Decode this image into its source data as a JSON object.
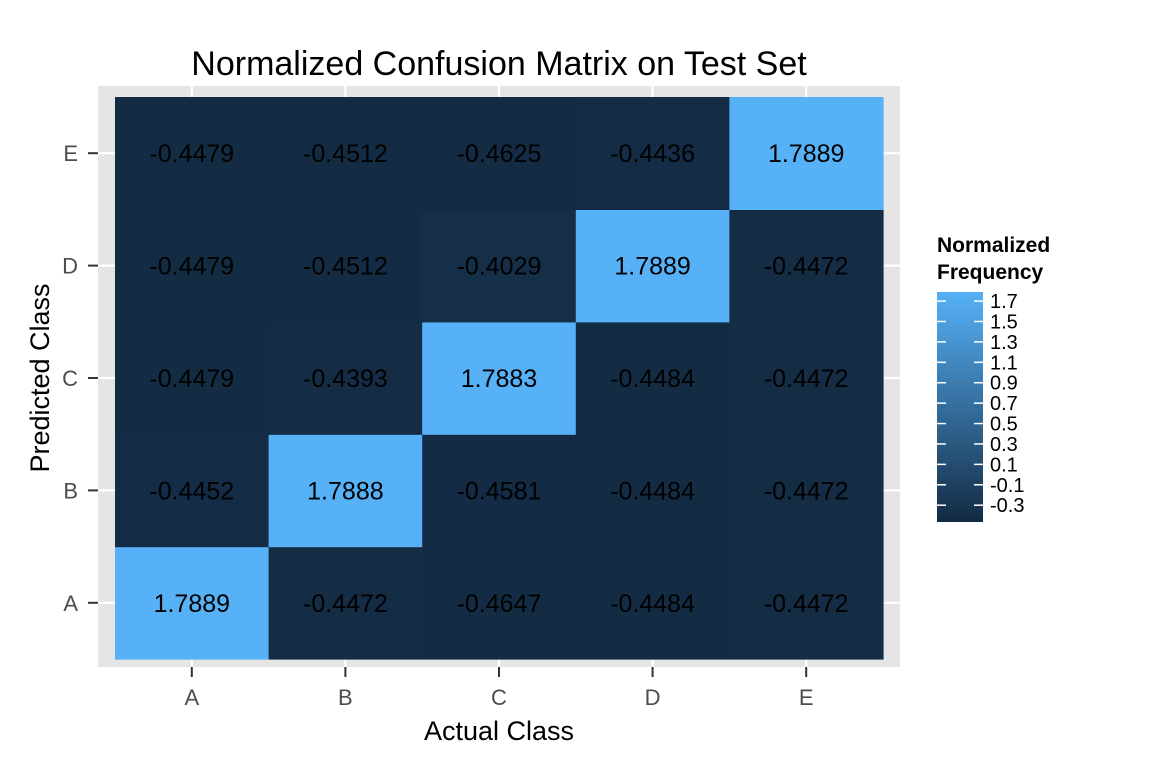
{
  "chart_data": {
    "type": "heatmap",
    "title": "Normalized Confusion Matrix on Test Set",
    "xlabel": "Actual Class",
    "ylabel": "Predicted Class",
    "x_categories": [
      "A",
      "B",
      "C",
      "D",
      "E"
    ],
    "y_categories": [
      "A",
      "B",
      "C",
      "D",
      "E"
    ],
    "cells": [
      {
        "x": "A",
        "y": "A",
        "value": 1.7889,
        "label": "1.7889"
      },
      {
        "x": "B",
        "y": "A",
        "value": -0.4472,
        "label": "-0.4472"
      },
      {
        "x": "C",
        "y": "A",
        "value": -0.4647,
        "label": "-0.4647"
      },
      {
        "x": "D",
        "y": "A",
        "value": -0.4484,
        "label": "-0.4484"
      },
      {
        "x": "E",
        "y": "A",
        "value": -0.4472,
        "label": "-0.4472"
      },
      {
        "x": "A",
        "y": "B",
        "value": -0.4452,
        "label": "-0.4452"
      },
      {
        "x": "B",
        "y": "B",
        "value": 1.7888,
        "label": "1.7888"
      },
      {
        "x": "C",
        "y": "B",
        "value": -0.4581,
        "label": "-0.4581"
      },
      {
        "x": "D",
        "y": "B",
        "value": -0.4484,
        "label": "-0.4484"
      },
      {
        "x": "E",
        "y": "B",
        "value": -0.4472,
        "label": "-0.4472"
      },
      {
        "x": "A",
        "y": "C",
        "value": -0.4479,
        "label": "-0.4479"
      },
      {
        "x": "B",
        "y": "C",
        "value": -0.4393,
        "label": "-0.4393"
      },
      {
        "x": "C",
        "y": "C",
        "value": 1.7883,
        "label": "1.7883"
      },
      {
        "x": "D",
        "y": "C",
        "value": -0.4484,
        "label": "-0.4484"
      },
      {
        "x": "E",
        "y": "C",
        "value": -0.4472,
        "label": "-0.4472"
      },
      {
        "x": "A",
        "y": "D",
        "value": -0.4479,
        "label": "-0.4479"
      },
      {
        "x": "B",
        "y": "D",
        "value": -0.4512,
        "label": "-0.4512"
      },
      {
        "x": "C",
        "y": "D",
        "value": -0.4029,
        "label": "-0.4029"
      },
      {
        "x": "D",
        "y": "D",
        "value": 1.7889,
        "label": "1.7889"
      },
      {
        "x": "E",
        "y": "D",
        "value": -0.4472,
        "label": "-0.4472"
      },
      {
        "x": "A",
        "y": "E",
        "value": -0.4479,
        "label": "-0.4479"
      },
      {
        "x": "B",
        "y": "E",
        "value": -0.4512,
        "label": "-0.4512"
      },
      {
        "x": "C",
        "y": "E",
        "value": -0.4625,
        "label": "-0.4625"
      },
      {
        "x": "D",
        "y": "E",
        "value": -0.4436,
        "label": "-0.4436"
      },
      {
        "x": "E",
        "y": "E",
        "value": 1.7889,
        "label": "1.7889"
      }
    ],
    "legend": {
      "title_lines": [
        "Normalized",
        "Frequency"
      ],
      "placement": "right",
      "ticks": [
        "1.7",
        "1.5",
        "1.3",
        "1.1",
        "0.9",
        "0.7",
        "0.5",
        "0.3",
        "0.1",
        "-0.1",
        "-0.3"
      ],
      "tick_values": [
        1.7,
        1.5,
        1.3,
        1.1,
        0.9,
        0.7,
        0.5,
        0.3,
        0.1,
        -0.1,
        -0.3
      ],
      "range": [
        -0.4647,
        1.7889
      ]
    },
    "colors": {
      "low": "#132B43",
      "high": "#56B1F7",
      "panel_background": "#E5E5E5",
      "grid": "#FFFFFF",
      "cell_text": "#000000",
      "tick_text": "#4D4D4D"
    },
    "grid": true
  }
}
